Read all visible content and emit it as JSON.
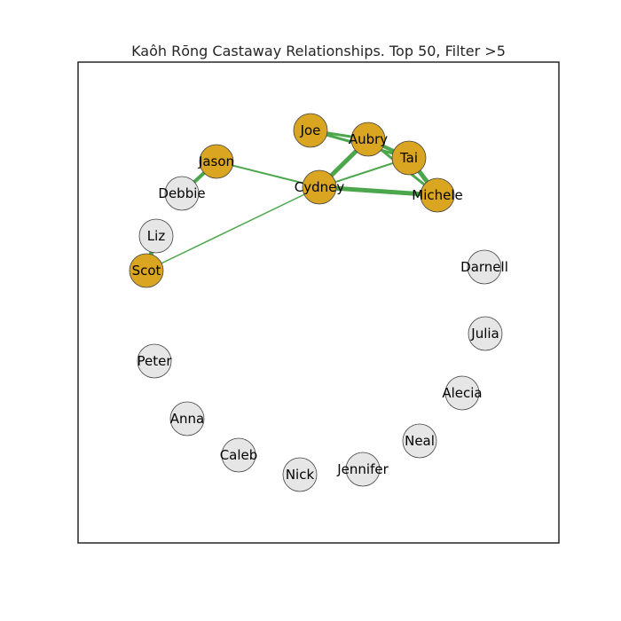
{
  "graph": {
    "title": "Kaôh Rōng Castaway Relationships. Top 50, Filter >5",
    "colors": {
      "highlight": "#DAA520",
      "default": "#E6E6E6",
      "edge": "#4CA64C",
      "node_stroke": "#444444"
    },
    "nodes": [
      {
        "id": "joe",
        "label": "Joe",
        "highlighted": true
      },
      {
        "id": "aubry",
        "label": "Aubry",
        "highlighted": true
      },
      {
        "id": "tai",
        "label": "Tai",
        "highlighted": true
      },
      {
        "id": "jason",
        "label": "Jason",
        "highlighted": true
      },
      {
        "id": "cydney",
        "label": "Cydney",
        "highlighted": true
      },
      {
        "id": "michele",
        "label": "Michele",
        "highlighted": true
      },
      {
        "id": "debbie",
        "label": "Debbie",
        "highlighted": false
      },
      {
        "id": "liz",
        "label": "Liz",
        "highlighted": false
      },
      {
        "id": "scot",
        "label": "Scot",
        "highlighted": true
      },
      {
        "id": "darnell",
        "label": "Darnell",
        "highlighted": false
      },
      {
        "id": "julia",
        "label": "Julia",
        "highlighted": false
      },
      {
        "id": "peter",
        "label": "Peter",
        "highlighted": false
      },
      {
        "id": "alecia",
        "label": "Alecia",
        "highlighted": false
      },
      {
        "id": "anna",
        "label": "Anna",
        "highlighted": false
      },
      {
        "id": "neal",
        "label": "Neal",
        "highlighted": false
      },
      {
        "id": "caleb",
        "label": "Caleb",
        "highlighted": false
      },
      {
        "id": "jennifer",
        "label": "Jennifer",
        "highlighted": false
      },
      {
        "id": "nick",
        "label": "Nick",
        "highlighted": false
      }
    ],
    "edges": [
      {
        "source": "joe",
        "target": "aubry",
        "weight": 3
      },
      {
        "source": "joe",
        "target": "tai",
        "weight": 3
      },
      {
        "source": "aubry",
        "target": "tai",
        "weight": 4
      },
      {
        "source": "aubry",
        "target": "michele",
        "weight": 3
      },
      {
        "source": "tai",
        "target": "michele",
        "weight": 5
      },
      {
        "source": "aubry",
        "target": "cydney",
        "weight": 5
      },
      {
        "source": "tai",
        "target": "cydney",
        "weight": 2
      },
      {
        "source": "cydney",
        "target": "michele",
        "weight": 5
      },
      {
        "source": "jason",
        "target": "cydney",
        "weight": 2
      },
      {
        "source": "jason",
        "target": "debbie",
        "weight": 4
      },
      {
        "source": "liz",
        "target": "scot",
        "weight": 5
      },
      {
        "source": "scot",
        "target": "cydney",
        "weight": 1.5
      }
    ]
  }
}
